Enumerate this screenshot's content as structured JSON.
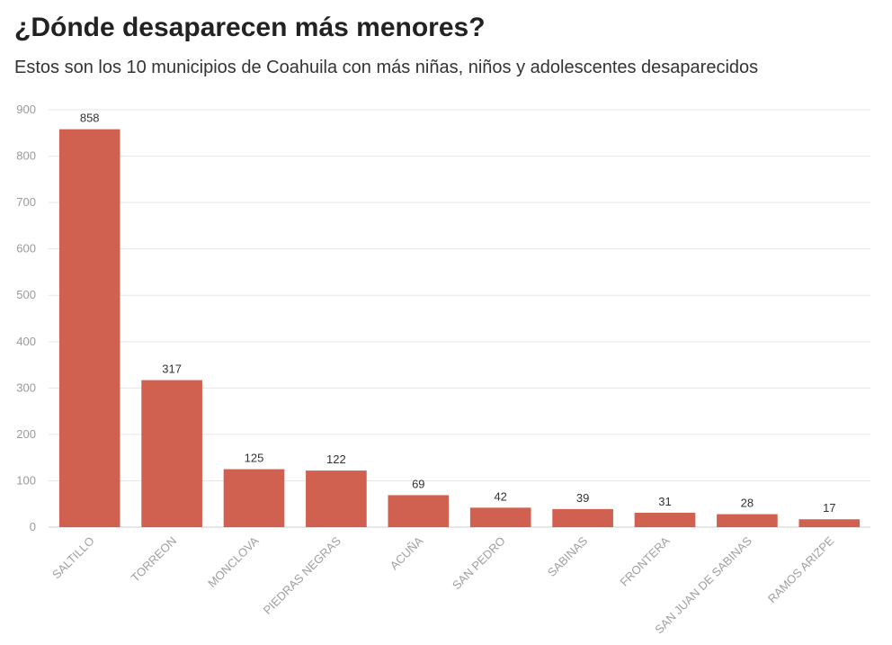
{
  "header": {
    "title": "¿Dónde desaparecen más menores?",
    "subtitle": "Estos son los 10 municipios de Coahuila con más niñas, niños y adolescentes desaparecidos"
  },
  "chart_data": {
    "type": "bar",
    "title": "¿Dónde desaparecen más menores?",
    "subtitle": "Estos son los 10 municipios de Coahuila con más niñas, niños y adolescentes desaparecidos",
    "categories": [
      "SALTILLO",
      "TORREON",
      "MONCLOVA",
      "PIEDRAS NEGRAS",
      "ACUÑA",
      "SAN PEDRO",
      "SABINAS",
      "FRONTERA",
      "SAN JUAN DE SABINAS",
      "RAMOS ARIZPE"
    ],
    "values": [
      858,
      317,
      125,
      122,
      69,
      42,
      39,
      31,
      28,
      17
    ],
    "ylim": [
      0,
      900
    ],
    "yticks": [
      0,
      100,
      200,
      300,
      400,
      500,
      600,
      700,
      800,
      900
    ],
    "xlabel": "",
    "ylabel": "",
    "grid": true,
    "bar_color": "#d0604f",
    "data_labels": true
  }
}
